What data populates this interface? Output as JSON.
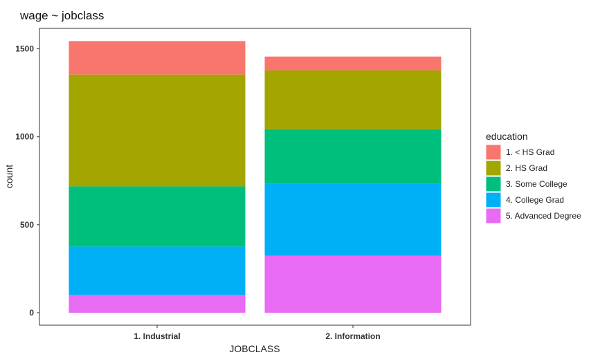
{
  "chart_data": {
    "type": "bar",
    "stacked": true,
    "title": "wage ~ jobclass",
    "xlabel": "JOBCLASS",
    "ylabel": "count",
    "ylim": [
      0,
      1560
    ],
    "yticks": [
      0,
      500,
      1000,
      1500
    ],
    "categories": [
      "1. Industrial",
      "2. Information"
    ],
    "legend": {
      "title": "education",
      "position": "right"
    },
    "grid": false,
    "series": [
      {
        "name": "1. < HS Grad",
        "color": "#F8766D",
        "values": [
          190,
          78
        ]
      },
      {
        "name": "2. HS Grad",
        "color": "#A3A500",
        "values": [
          636,
          335
        ]
      },
      {
        "name": "3. Some College",
        "color": "#00BF7D",
        "values": [
          342,
          308
        ]
      },
      {
        "name": "4. College Grad",
        "color": "#00B0F6",
        "values": [
          274,
          411
        ]
      },
      {
        "name": "5. Advanced Degree",
        "color": "#E76BF3",
        "values": [
          102,
          324
        ]
      }
    ]
  }
}
